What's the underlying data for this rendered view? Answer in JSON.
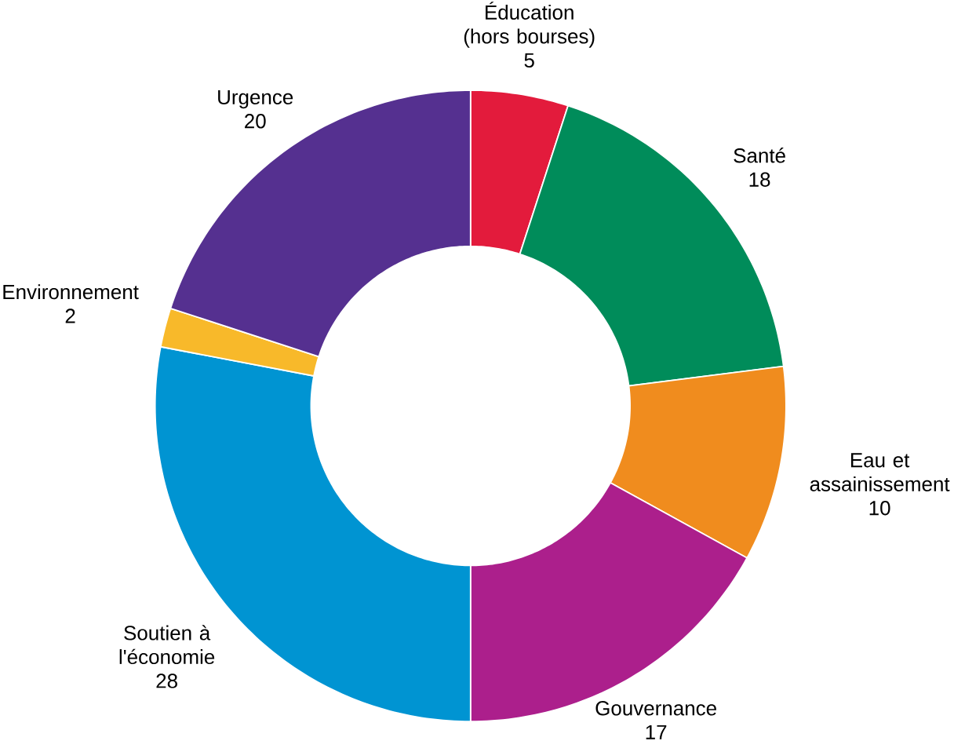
{
  "chart_data": {
    "type": "donut",
    "categories": [
      "Éducation (hors bourses)",
      "Santé",
      "Eau et assainissement",
      "Gouvernance",
      "Soutien à l'économie",
      "Environnement",
      "Urgence"
    ],
    "values": [
      5,
      18,
      10,
      17,
      28,
      2,
      20
    ],
    "colors": [
      "#e31b3c",
      "#008c5a",
      "#f08c1e",
      "#ac1f8c",
      "#0094d2",
      "#f8b92a",
      "#553090"
    ],
    "data_labels": true
  }
}
